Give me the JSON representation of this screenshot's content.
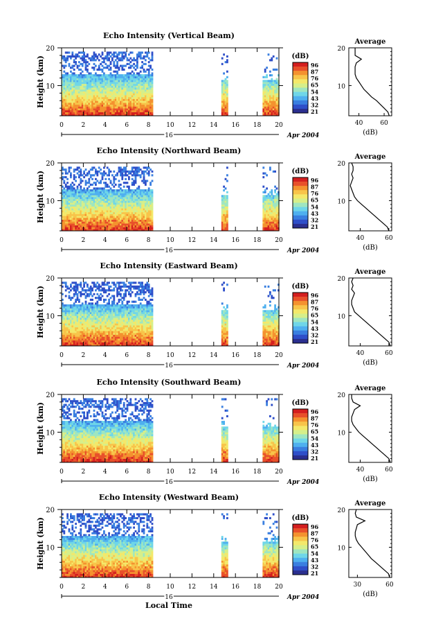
{
  "chart_data": [
    {
      "type": "heatmap",
      "title": "Echo Intensity (Vertical Beam)",
      "ylabel": "Height (km)",
      "x_ticks": [
        "0",
        "2",
        "4",
        "6",
        "8",
        "10",
        "12",
        "14",
        "16",
        "18",
        "20"
      ],
      "y_ticks": [
        "10",
        "20"
      ],
      "xlim": [
        0,
        20
      ],
      "ylim": [
        2,
        20
      ],
      "date_day": "16",
      "date_suffix": "Apr 2004",
      "colorbar_label": "(dB)",
      "colorbar_ticks": [
        "96",
        "87",
        "76",
        "65",
        "54",
        "43",
        "32",
        "21"
      ],
      "data_segments_hours": [
        [
          0,
          8.3
        ],
        [
          14.7,
          15.2
        ],
        [
          18.5,
          20
        ]
      ],
      "average": {
        "title": "Average",
        "xlabel": "(dB)",
        "x_ticks": [
          "40",
          "60"
        ],
        "xlim": [
          32,
          66
        ],
        "y_ticks": [
          "10",
          "20"
        ],
        "profile": [
          [
            2,
            64
          ],
          [
            3,
            63
          ],
          [
            4,
            60
          ],
          [
            5,
            57
          ],
          [
            6,
            54
          ],
          [
            7,
            50
          ],
          [
            8,
            47
          ],
          [
            9,
            44
          ],
          [
            10,
            42
          ],
          [
            11,
            40
          ],
          [
            12,
            38
          ],
          [
            13,
            37
          ],
          [
            14,
            37
          ],
          [
            15,
            37
          ],
          [
            16,
            38
          ],
          [
            17,
            42
          ],
          [
            18,
            37
          ],
          [
            19,
            37
          ],
          [
            20,
            37
          ]
        ]
      }
    },
    {
      "type": "heatmap",
      "title": "Echo Intensity (Northward Beam)",
      "ylabel": "Height (km)",
      "x_ticks": [
        "0",
        "2",
        "4",
        "6",
        "8",
        "10",
        "12",
        "14",
        "16",
        "18",
        "20"
      ],
      "y_ticks": [
        "10",
        "20"
      ],
      "xlim": [
        0,
        20
      ],
      "ylim": [
        2,
        20
      ],
      "date_day": "16",
      "date_suffix": "Apr 2004",
      "colorbar_label": "(dB)",
      "colorbar_ticks": [
        "96",
        "87",
        "76",
        "65",
        "54",
        "43",
        "32",
        "21"
      ],
      "data_segments_hours": [
        [
          0,
          8.3
        ],
        [
          14.7,
          15.2
        ],
        [
          18.5,
          20
        ]
      ],
      "average": {
        "title": "Average",
        "xlabel": "(dB)",
        "x_ticks": [
          "40",
          "60"
        ],
        "xlim": [
          32,
          62
        ],
        "y_ticks": [
          "10",
          "20"
        ],
        "profile": [
          [
            2,
            60
          ],
          [
            3,
            59
          ],
          [
            4,
            56
          ],
          [
            5,
            53
          ],
          [
            6,
            50
          ],
          [
            7,
            47
          ],
          [
            8,
            44
          ],
          [
            9,
            41
          ],
          [
            10,
            38
          ],
          [
            11,
            36
          ],
          [
            12,
            35
          ],
          [
            13,
            34
          ],
          [
            14,
            33
          ],
          [
            15,
            34
          ],
          [
            16,
            35
          ],
          [
            17,
            34
          ],
          [
            18,
            35
          ],
          [
            19,
            35
          ],
          [
            20,
            34
          ]
        ]
      }
    },
    {
      "type": "heatmap",
      "title": "Echo Intensity (Eastward Beam)",
      "ylabel": "Height (km)",
      "x_ticks": [
        "0",
        "2",
        "4",
        "6",
        "8",
        "10",
        "12",
        "14",
        "16",
        "18",
        "20"
      ],
      "y_ticks": [
        "10",
        "20"
      ],
      "xlim": [
        0,
        20
      ],
      "ylim": [
        2,
        20
      ],
      "date_day": "16",
      "date_suffix": "Apr 2004",
      "colorbar_label": "(dB)",
      "colorbar_ticks": [
        "96",
        "87",
        "76",
        "65",
        "54",
        "43",
        "32",
        "21"
      ],
      "data_segments_hours": [
        [
          0,
          8.3
        ],
        [
          14.7,
          15.2
        ],
        [
          18.5,
          20
        ]
      ],
      "average": {
        "title": "Average",
        "xlabel": "(dB)",
        "x_ticks": [
          "40",
          "60"
        ],
        "xlim": [
          32,
          62
        ],
        "y_ticks": [
          "10",
          "20"
        ],
        "profile": [
          [
            2,
            61
          ],
          [
            3,
            60
          ],
          [
            4,
            57
          ],
          [
            5,
            54
          ],
          [
            6,
            51
          ],
          [
            7,
            48
          ],
          [
            8,
            45
          ],
          [
            9,
            42
          ],
          [
            10,
            39
          ],
          [
            11,
            36
          ],
          [
            12,
            35
          ],
          [
            13,
            34
          ],
          [
            14,
            34
          ],
          [
            15,
            35
          ],
          [
            16,
            36
          ],
          [
            17,
            34
          ],
          [
            18,
            35
          ],
          [
            19,
            34
          ],
          [
            20,
            35
          ]
        ]
      }
    },
    {
      "type": "heatmap",
      "title": "Echo Intensity (Southward Beam)",
      "ylabel": "Height (km)",
      "x_ticks": [
        "0",
        "2",
        "4",
        "6",
        "8",
        "10",
        "12",
        "14",
        "16",
        "18",
        "20"
      ],
      "y_ticks": [
        "10",
        "20"
      ],
      "xlim": [
        0,
        20
      ],
      "ylim": [
        2,
        20
      ],
      "date_day": "16",
      "date_suffix": "Apr 2004",
      "colorbar_label": "(dB)",
      "colorbar_ticks": [
        "96",
        "87",
        "76",
        "65",
        "54",
        "43",
        "32",
        "21"
      ],
      "data_segments_hours": [
        [
          0,
          8.3
        ],
        [
          14.7,
          15.2
        ],
        [
          18.5,
          20
        ]
      ],
      "average": {
        "title": "Average",
        "xlabel": "(dB)",
        "x_ticks": [
          "40",
          "60"
        ],
        "xlim": [
          32,
          62
        ],
        "y_ticks": [
          "10",
          "20"
        ],
        "profile": [
          [
            2,
            61
          ],
          [
            3,
            60
          ],
          [
            4,
            57
          ],
          [
            5,
            54
          ],
          [
            6,
            51
          ],
          [
            7,
            48
          ],
          [
            8,
            45
          ],
          [
            9,
            42
          ],
          [
            10,
            39
          ],
          [
            11,
            37
          ],
          [
            12,
            35
          ],
          [
            13,
            34
          ],
          [
            14,
            34
          ],
          [
            15,
            35
          ],
          [
            16,
            36
          ],
          [
            17,
            40
          ],
          [
            18,
            35
          ],
          [
            19,
            34
          ],
          [
            20,
            34
          ]
        ]
      }
    },
    {
      "type": "heatmap",
      "title": "Echo Intensity (Westward Beam)",
      "ylabel": "Height (km)",
      "xlabel": "Local Time",
      "x_ticks": [
        "0",
        "2",
        "4",
        "6",
        "8",
        "10",
        "12",
        "14",
        "16",
        "18",
        "20"
      ],
      "y_ticks": [
        "10",
        "20"
      ],
      "xlim": [
        0,
        20
      ],
      "ylim": [
        2,
        20
      ],
      "date_day": "16",
      "date_suffix": "Apr 2004",
      "colorbar_label": "(dB)",
      "colorbar_ticks": [
        "96",
        "87",
        "76",
        "65",
        "54",
        "43",
        "32",
        "21"
      ],
      "data_segments_hours": [
        [
          0,
          8.3
        ],
        [
          14.7,
          15.2
        ],
        [
          18.5,
          20
        ]
      ],
      "average": {
        "title": "Average",
        "xlabel": "(dB)",
        "x_ticks": [
          "30",
          "60"
        ],
        "xlim": [
          22,
          62
        ],
        "y_ticks": [
          "10",
          "20"
        ],
        "profile": [
          [
            2,
            60
          ],
          [
            3,
            59
          ],
          [
            4,
            55
          ],
          [
            5,
            51
          ],
          [
            6,
            47
          ],
          [
            7,
            43
          ],
          [
            8,
            40
          ],
          [
            9,
            37
          ],
          [
            10,
            34
          ],
          [
            11,
            31
          ],
          [
            12,
            29
          ],
          [
            13,
            28
          ],
          [
            14,
            28
          ],
          [
            15,
            29
          ],
          [
            16,
            30
          ],
          [
            17,
            37
          ],
          [
            18,
            29
          ],
          [
            19,
            28
          ],
          [
            20,
            29
          ]
        ]
      }
    }
  ],
  "colors": {
    "colormap": [
      "#2b2f8f",
      "#2f4fc9",
      "#3a7fe0",
      "#4fb0ef",
      "#6fd6e8",
      "#9fe6c0",
      "#d6ef8a",
      "#f4e86a",
      "#f8c44a",
      "#f4922f",
      "#e8502a",
      "#d41f1f"
    ]
  }
}
